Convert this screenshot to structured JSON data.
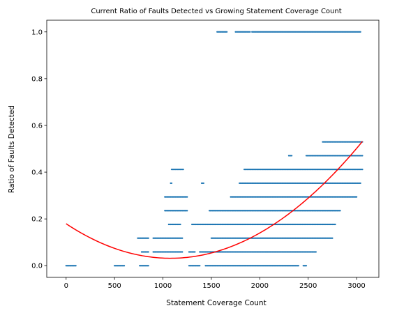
{
  "chart_data": {
    "type": "scatter",
    "title": "Current Ratio of Faults Detected vs Growing Statement Coverage Count",
    "xlabel": "Statement Coverage Count",
    "ylabel": "Ratio of Faults Detected",
    "xlim": [
      -200,
      3230
    ],
    "ylim": [
      -0.05,
      1.05
    ],
    "xticks": [
      0,
      500,
      1000,
      1500,
      2000,
      2500,
      3000
    ],
    "yticks": [
      0.0,
      0.2,
      0.4,
      0.6,
      0.8,
      1.0
    ],
    "xtick_labels": [
      "0",
      "500",
      "1000",
      "1500",
      "2000",
      "2500",
      "3000"
    ],
    "ytick_labels": [
      "0.0",
      "0.2",
      "0.4",
      "0.6",
      "0.8",
      "1.0"
    ],
    "grid": false,
    "colors": {
      "points": "#1f77b4",
      "fit": "#ff0000"
    },
    "scatter_bands": [
      {
        "y": 0.0,
        "segments": [
          [
            0,
            100
          ],
          [
            500,
            600
          ],
          [
            760,
            850
          ],
          [
            1270,
            1380
          ],
          [
            1440,
            2400
          ],
          [
            2450,
            2480
          ]
        ]
      },
      {
        "y": 0.0588,
        "segments": [
          [
            780,
            850
          ],
          [
            900,
            1200
          ],
          [
            1270,
            1330
          ],
          [
            1380,
            2580
          ]
        ]
      },
      {
        "y": 0.1176,
        "segments": [
          [
            740,
            850
          ],
          [
            900,
            1200
          ],
          [
            1500,
            2750
          ]
        ]
      },
      {
        "y": 0.1765,
        "segments": [
          [
            1060,
            1180
          ],
          [
            1300,
            2780
          ]
        ]
      },
      {
        "y": 0.2353,
        "segments": [
          [
            1020,
            1250
          ],
          [
            1480,
            2830
          ]
        ]
      },
      {
        "y": 0.2941,
        "segments": [
          [
            1020,
            1250
          ],
          [
            1700,
            3000
          ]
        ]
      },
      {
        "y": 0.3529,
        "segments": [
          [
            1080,
            1090
          ],
          [
            1400,
            1420
          ],
          [
            1790,
            3040
          ]
        ]
      },
      {
        "y": 0.4118,
        "segments": [
          [
            1090,
            1210
          ],
          [
            1840,
            3060
          ]
        ]
      },
      {
        "y": 0.4706,
        "segments": [
          [
            2300,
            2330
          ],
          [
            2480,
            3060
          ]
        ]
      },
      {
        "y": 0.5294,
        "segments": [
          [
            2650,
            3060
          ]
        ]
      },
      {
        "y": 1.0,
        "segments": [
          [
            1560,
            1660
          ],
          [
            1750,
            1900
          ],
          [
            1920,
            3040
          ]
        ]
      }
    ],
    "fit_curve": {
      "type": "quadratic",
      "x": [
        0,
        500,
        1000,
        1250,
        1500,
        2000,
        2500,
        3000,
        3060
      ],
      "y": [
        0.155,
        0.095,
        0.055,
        0.048,
        0.052,
        0.115,
        0.258,
        0.505,
        0.555
      ]
    }
  }
}
